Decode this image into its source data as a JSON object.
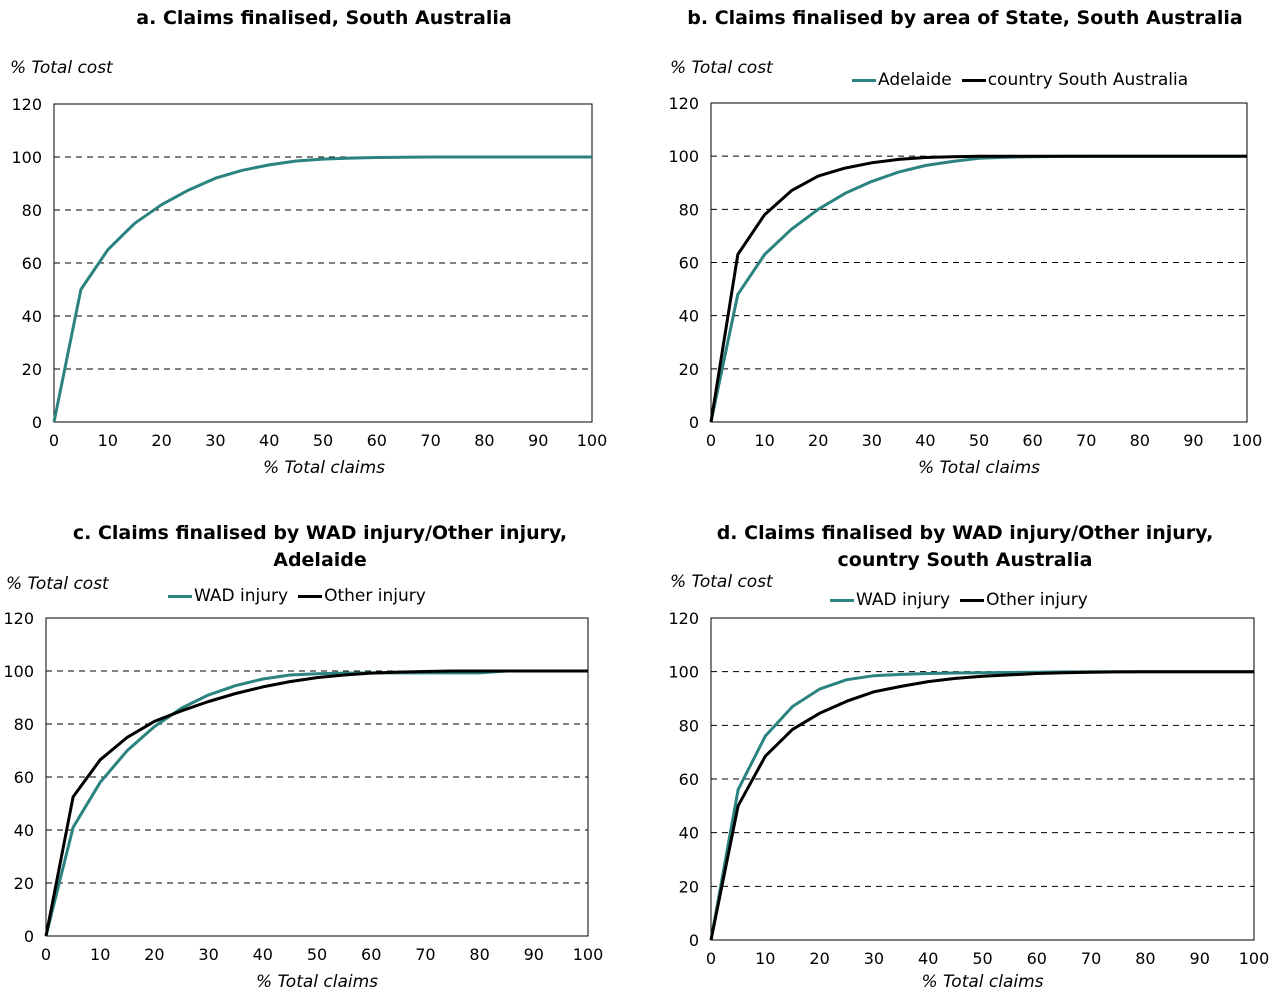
{
  "colors": {
    "teal": "#2A837F",
    "black": "#000000"
  },
  "chart_data": [
    {
      "id": "a",
      "type": "line",
      "title": "a. Claims finalised, South Australia",
      "ylabel": "% Total cost",
      "xlabel": "% Total claims",
      "xlim": [
        0,
        100
      ],
      "ylim": [
        0,
        120
      ],
      "xticks": [
        0,
        10,
        20,
        30,
        40,
        50,
        60,
        70,
        80,
        90,
        100
      ],
      "yticks": [
        0,
        20,
        40,
        60,
        80,
        100,
        120
      ],
      "grid": "horizontal dashed",
      "legend": "none",
      "x": [
        0,
        5,
        10,
        15,
        20,
        25,
        30,
        35,
        40,
        45,
        50,
        55,
        60,
        65,
        70,
        75,
        80,
        85,
        90,
        95,
        100
      ],
      "series": [
        {
          "color": "#2A837F",
          "values": [
            0,
            50,
            65,
            75,
            82,
            87.5,
            92,
            95,
            97,
            98.5,
            99.2,
            99.6,
            99.8,
            99.9,
            100,
            100,
            100,
            100,
            100,
            100,
            100
          ]
        }
      ]
    },
    {
      "id": "b",
      "type": "line",
      "title": "b. Claims finalised by area of State, South Australia",
      "ylabel": "% Total cost",
      "xlabel": "% Total claims",
      "xlim": [
        0,
        100
      ],
      "ylim": [
        0,
        120
      ],
      "xticks": [
        0,
        10,
        20,
        30,
        40,
        50,
        60,
        70,
        80,
        90,
        100
      ],
      "yticks": [
        0,
        20,
        40,
        60,
        80,
        100,
        120
      ],
      "grid": "horizontal dashed",
      "legend": "top",
      "x": [
        0,
        5,
        10,
        15,
        20,
        25,
        30,
        35,
        40,
        45,
        50,
        55,
        60,
        65,
        70,
        75,
        80,
        85,
        90,
        95,
        100
      ],
      "series": [
        {
          "name": "Adelaide",
          "color": "#2A837F",
          "values": [
            0,
            48,
            63,
            72.5,
            80,
            86,
            90.5,
            94,
            96.5,
            98,
            99.2,
            99.6,
            99.8,
            99.9,
            100,
            100,
            100,
            100,
            100,
            100,
            100
          ]
        },
        {
          "name": "country South Australia",
          "color": "#000000",
          "values": [
            0,
            63,
            78,
            87,
            92.5,
            95.5,
            97.5,
            98.8,
            99.5,
            99.8,
            100,
            100,
            100,
            100,
            100,
            100,
            100,
            100,
            100,
            100,
            100
          ]
        }
      ]
    },
    {
      "id": "c",
      "type": "line",
      "title": "c. Claims finalised by WAD injury/Other injury, Adelaide",
      "ylabel": "% Total cost",
      "xlabel": "% Total claims",
      "xlim": [
        0,
        100
      ],
      "ylim": [
        0,
        120
      ],
      "xticks": [
        0,
        10,
        20,
        30,
        40,
        50,
        60,
        70,
        80,
        90,
        100
      ],
      "yticks": [
        0,
        20,
        40,
        60,
        80,
        100,
        120
      ],
      "grid": "horizontal dashed",
      "legend": "top",
      "x": [
        0,
        5,
        10,
        15,
        20,
        25,
        30,
        35,
        40,
        45,
        50,
        55,
        60,
        65,
        70,
        75,
        80,
        85,
        90,
        95,
        100
      ],
      "series": [
        {
          "name": "WAD injury",
          "color": "#2A837F",
          "values": [
            0,
            41,
            58,
            70,
            79,
            86,
            91,
            94.5,
            97,
            98.5,
            99,
            99.2,
            99.3,
            99.3,
            99.3,
            99.3,
            99.3,
            100,
            100,
            100,
            100
          ]
        },
        {
          "name": "Other injury",
          "color": "#000000",
          "values": [
            0,
            52.5,
            66.5,
            75,
            81,
            85,
            88.5,
            91.5,
            94,
            96,
            97.5,
            98.5,
            99.2,
            99.6,
            99.8,
            100,
            100,
            100,
            100,
            100,
            100
          ]
        }
      ]
    },
    {
      "id": "d",
      "type": "line",
      "title": "d. Claims finalised by WAD injury/Other injury, country South Australia",
      "ylabel": "% Total cost",
      "xlabel": "% Total claims",
      "xlim": [
        0,
        100
      ],
      "ylim": [
        0,
        120
      ],
      "xticks": [
        0,
        10,
        20,
        30,
        40,
        50,
        60,
        70,
        80,
        90,
        100
      ],
      "yticks": [
        0,
        20,
        40,
        60,
        80,
        100,
        120
      ],
      "grid": "horizontal dashed",
      "legend": "top",
      "x": [
        0,
        5,
        10,
        15,
        20,
        25,
        30,
        35,
        40,
        45,
        50,
        55,
        60,
        65,
        70,
        75,
        80,
        85,
        90,
        95,
        100
      ],
      "series": [
        {
          "name": "WAD injury",
          "color": "#2A837F",
          "values": [
            0,
            56,
            76,
            87,
            93.5,
            97,
            98.5,
            99,
            99.3,
            99.5,
            99.6,
            99.7,
            99.8,
            99.9,
            100,
            100,
            100,
            100,
            100,
            100,
            100
          ]
        },
        {
          "name": "Other injury",
          "color": "#000000",
          "values": [
            0,
            50,
            68.5,
            78.5,
            84.5,
            89,
            92.5,
            94.5,
            96.3,
            97.5,
            98.3,
            98.8,
            99.3,
            99.6,
            99.8,
            99.9,
            100,
            100,
            100,
            100,
            100
          ]
        }
      ]
    }
  ]
}
